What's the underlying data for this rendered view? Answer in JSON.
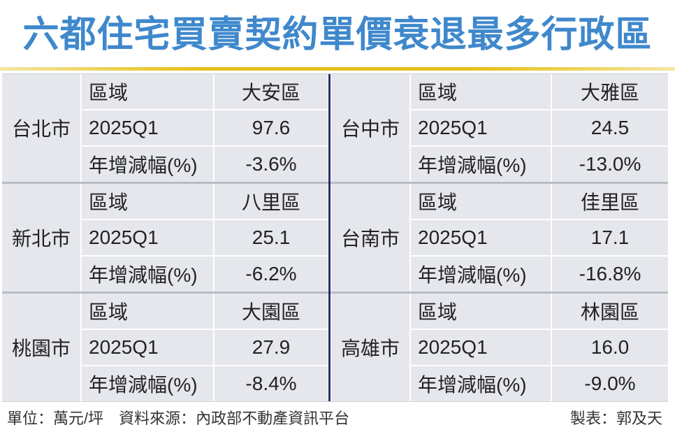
{
  "colors": {
    "title": "#3f88cc",
    "cell_background": "#e5e7ec",
    "center_divider": "#24306a",
    "block_separator": "#b9bcc3",
    "accent_line": "#e6bf12"
  },
  "chart_data": {
    "type": "table",
    "title": "六都住宅買賣契約單價衰退最多行政區",
    "row_labels": [
      "區域",
      "2025Q1",
      "年增減幅(%)"
    ],
    "rows": [
      {
        "city": "台北市",
        "district": "大安區",
        "q1_2025": "97.6",
        "yoy_change": "-3.6%"
      },
      {
        "city": "台中市",
        "district": "大雅區",
        "q1_2025": "24.5",
        "yoy_change": "-13.0%"
      },
      {
        "city": "新北市",
        "district": "八里區",
        "q1_2025": "25.1",
        "yoy_change": "-6.2%"
      },
      {
        "city": "台南市",
        "district": "佳里區",
        "q1_2025": "17.1",
        "yoy_change": "-16.8%"
      },
      {
        "city": "桃園市",
        "district": "大園區",
        "q1_2025": "27.9",
        "yoy_change": "-8.4%"
      },
      {
        "city": "高雄市",
        "district": "林園區",
        "q1_2025": "16.0",
        "yoy_change": "-9.0%"
      }
    ]
  },
  "footer": {
    "unit": "單位：萬元/坪",
    "source": "資料來源：內政部不動產資訊平台",
    "credit": "製表：郭及天"
  }
}
